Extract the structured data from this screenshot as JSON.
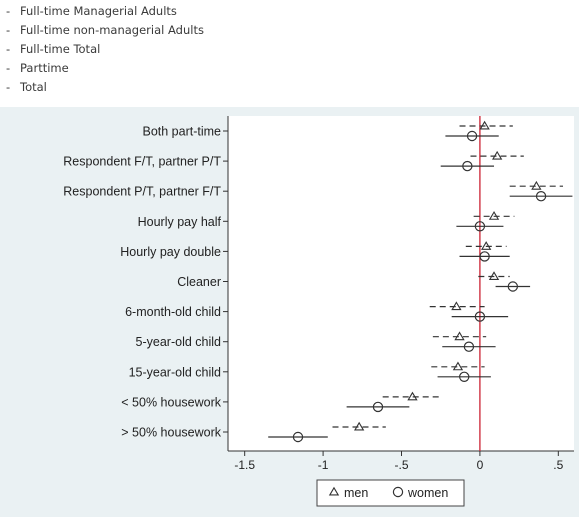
{
  "header_list": [
    "Full-time Managerial Adults",
    "Full-time non-managerial Adults",
    "Full-time Total",
    "Parttime",
    "Total"
  ],
  "colors": {
    "panel": "#eaf1f3",
    "plot_bg": "#ffffff",
    "series": "#333333",
    "zero_line": "#cc2233"
  },
  "chart_data": {
    "type": "scatter",
    "subtype": "coefficient-plot",
    "categories": [
      "Both part-time",
      "Respondent F/T, partner P/T",
      "Respondent P/T, partner F/T",
      "Hourly pay half",
      "Hourly pay double",
      "Cleaner",
      "6-month-old child",
      "5-year-old child",
      "15-year-old child",
      "< 50% housework",
      "> 50% housework"
    ],
    "series": [
      {
        "name": "men",
        "marker": "triangle",
        "line": "dashed",
        "values": [
          0.03,
          0.11,
          0.36,
          0.09,
          0.04,
          0.09,
          -0.15,
          -0.13,
          -0.14,
          -0.43,
          -0.77
        ],
        "ci_low": [
          -0.13,
          -0.06,
          0.19,
          -0.04,
          -0.09,
          -0.01,
          -0.32,
          -0.3,
          -0.31,
          -0.62,
          -0.94
        ],
        "ci_high": [
          0.21,
          0.28,
          0.53,
          0.22,
          0.17,
          0.19,
          0.03,
          0.04,
          0.03,
          -0.24,
          -0.6
        ]
      },
      {
        "name": "women",
        "marker": "circle",
        "line": "solid",
        "values": [
          -0.05,
          -0.08,
          0.39,
          0.0,
          0.03,
          0.21,
          0.0,
          -0.07,
          -0.1,
          -0.65,
          -1.16
        ],
        "ci_low": [
          -0.22,
          -0.25,
          0.19,
          -0.15,
          -0.13,
          0.1,
          -0.18,
          -0.24,
          -0.27,
          -0.85,
          -1.35
        ],
        "ci_high": [
          0.12,
          0.09,
          0.59,
          0.15,
          0.19,
          0.32,
          0.18,
          0.1,
          0.07,
          -0.45,
          -0.97
        ]
      }
    ],
    "x_ticks": [
      -1.5,
      -1,
      -0.5,
      0,
      0.5
    ],
    "x_tick_labels": [
      "-1.5",
      "-1",
      "-.5",
      "0",
      ".5"
    ],
    "xlim": [
      -1.6,
      0.6
    ],
    "reference_line_x": 0,
    "legend": {
      "position": "bottom",
      "entries": [
        "men",
        "women"
      ]
    },
    "grid": false
  }
}
